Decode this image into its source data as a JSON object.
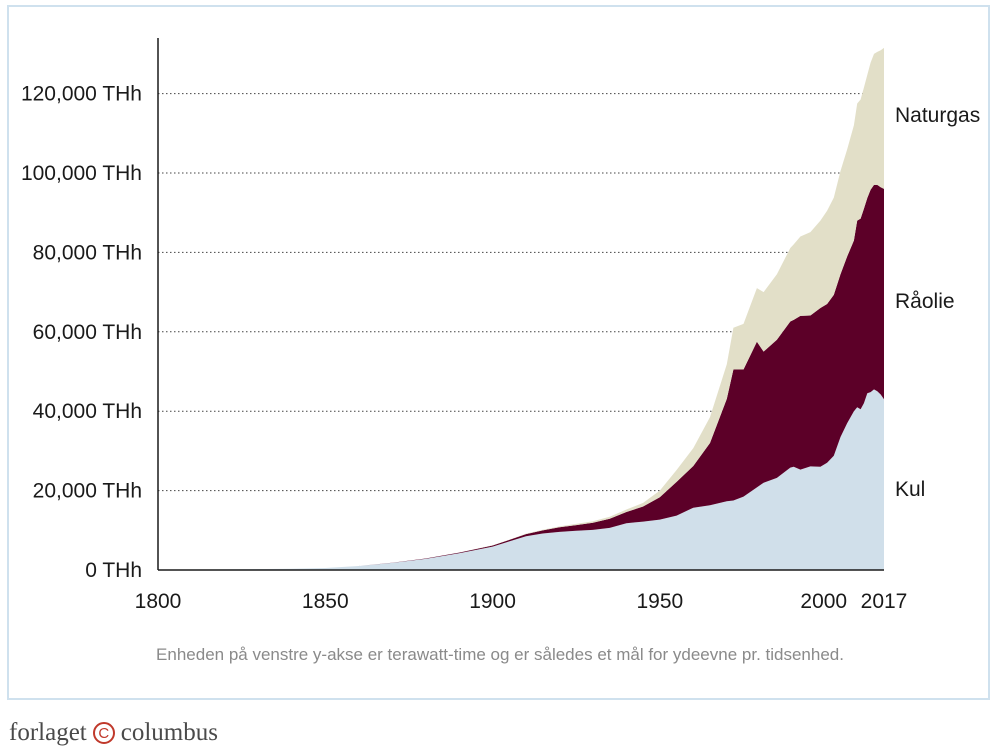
{
  "chart_data": {
    "type": "area",
    "stacked": true,
    "x_label": "",
    "y_label": "",
    "x_ticks": [
      "1800",
      "1850",
      "1900",
      "1950",
      "2000",
      "2017"
    ],
    "y_ticks": [
      "0 THh",
      "20,000 THh",
      "40,000 THh",
      "60,000 THh",
      "80,000 THh",
      "100,000 THh",
      "120,000 THh"
    ],
    "xlim": [
      1800,
      2017
    ],
    "ylim": [
      0,
      134000
    ],
    "grid": "horizontal dotted",
    "legend": "inline labels at right",
    "x": [
      1800,
      1820,
      1840,
      1850,
      1860,
      1870,
      1880,
      1890,
      1900,
      1905,
      1910,
      1915,
      1920,
      1925,
      1930,
      1935,
      1940,
      1945,
      1950,
      1955,
      1960,
      1965,
      1970,
      1972,
      1975,
      1979,
      1981,
      1985,
      1989,
      1990,
      1992,
      1995,
      1998,
      2000,
      2002,
      2004,
      2006,
      2008,
      2009,
      2010,
      2011,
      2012,
      2013,
      2014,
      2015,
      2016,
      2017
    ],
    "series": [
      {
        "name": "Kul",
        "color": "#d0dfea",
        "values": [
          100,
          150,
          300,
          500,
          1000,
          1800,
          2800,
          4200,
          5900,
          7200,
          8500,
          9200,
          9600,
          9900,
          10100,
          10600,
          11800,
          12200,
          12700,
          13700,
          15700,
          16300,
          17300,
          17500,
          18500,
          20800,
          22000,
          23200,
          25800,
          26000,
          25300,
          26100,
          26000,
          27000,
          28800,
          33500,
          37000,
          40000,
          41000,
          40500,
          42000,
          44500,
          44800,
          45500,
          45000,
          44200,
          43000
        ]
      },
      {
        "name": "Råolie",
        "color": "#5c0028",
        "values": [
          0,
          0,
          0,
          0,
          5,
          30,
          90,
          180,
          280,
          380,
          550,
          770,
          1150,
          1400,
          1800,
          2300,
          2800,
          3800,
          5600,
          8500,
          10500,
          15700,
          25800,
          33000,
          32000,
          36700,
          33000,
          34800,
          36800,
          37000,
          38700,
          38000,
          40000,
          40000,
          40500,
          41000,
          42000,
          43000,
          47000,
          48000,
          49000,
          49200,
          51000,
          51500,
          52000,
          52200,
          53000
        ]
      },
      {
        "name": "Naturgas",
        "color": "#e2dfc8",
        "values": [
          0,
          0,
          0,
          0,
          0,
          0,
          5,
          15,
          40,
          60,
          110,
          150,
          220,
          300,
          400,
          500,
          650,
          900,
          1700,
          3000,
          4500,
          6500,
          8700,
          10500,
          11500,
          13500,
          15000,
          16500,
          18500,
          19000,
          20000,
          21000,
          22000,
          23500,
          24500,
          26000,
          27000,
          29000,
          29500,
          30000,
          30500,
          31000,
          32000,
          33000,
          33500,
          34500,
          35500
        ]
      }
    ]
  },
  "caption": "Enheden på venstre y-akse er terawatt-time og er således et mål for ydeevne pr. tidsenhed.",
  "brand": {
    "left": "forlaget",
    "mark": "C",
    "right": "columbus"
  },
  "colors": {
    "frame": "#cfe1ee",
    "kul": "#d0dfea",
    "raolie": "#5c0028",
    "naturgas": "#e2dfc8"
  }
}
